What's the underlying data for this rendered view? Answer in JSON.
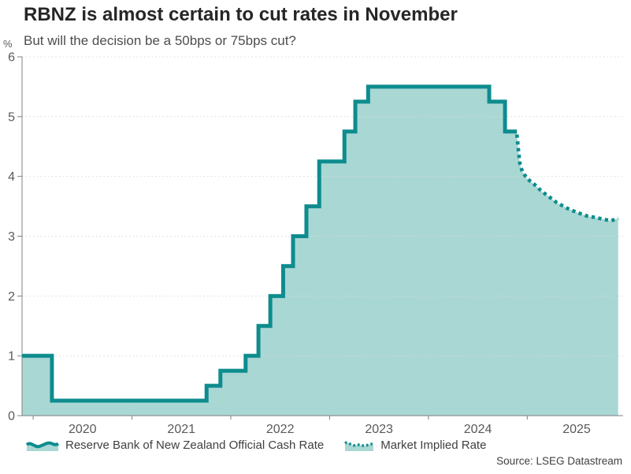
{
  "header": {
    "title": "RBNZ is almost certain to cut rates in November",
    "subtitle": "But will the decision be a 50bps or 75bps cut?",
    "y_unit": "%"
  },
  "legend": {
    "items": [
      {
        "label": "Reserve Bank of New Zealand Official Cash Rate",
        "style": "solid-area"
      },
      {
        "label": "Market Implied Rate",
        "style": "dotted-area"
      }
    ]
  },
  "source": "Source: LSEG Datastream",
  "chart_data": {
    "type": "area",
    "title": "RBNZ is almost certain to cut rates in November",
    "subtitle": "But will the decision be a 50bps or 75bps cut?",
    "xlabel": "",
    "ylabel": "%",
    "ylim": [
      0,
      6
    ],
    "yticks": [
      0,
      1,
      2,
      3,
      4,
      5,
      6
    ],
    "xlim": [
      2019.888,
      2025.97
    ],
    "xticks": [
      2020,
      2021,
      2022,
      2023,
      2024,
      2025
    ],
    "grid": "horizontal-dotted",
    "legend_position": "bottom",
    "series": [
      {
        "name": "Reserve Bank of New Zealand Official Cash Rate",
        "type": "step-area",
        "line": "solid",
        "points": [
          [
            2019.888,
            1.0
          ],
          [
            2020.19,
            0.25
          ],
          [
            2021.755,
            0.5
          ],
          [
            2021.895,
            0.75
          ],
          [
            2022.15,
            1.0
          ],
          [
            2022.28,
            1.5
          ],
          [
            2022.4,
            2.0
          ],
          [
            2022.53,
            2.5
          ],
          [
            2022.63,
            3.0
          ],
          [
            2022.765,
            3.5
          ],
          [
            2022.895,
            4.25
          ],
          [
            2023.15,
            4.75
          ],
          [
            2023.26,
            5.25
          ],
          [
            2023.39,
            5.5
          ],
          [
            2024.615,
            5.25
          ],
          [
            2024.775,
            4.75
          ]
        ],
        "end_x": 2024.895
      },
      {
        "name": "Market Implied Rate",
        "type": "line-area",
        "line": "dotted",
        "points": [
          [
            2024.895,
            4.7
          ],
          [
            2024.91,
            4.45
          ],
          [
            2024.925,
            4.22
          ],
          [
            2024.95,
            4.08
          ],
          [
            2025.0,
            3.96
          ],
          [
            2025.07,
            3.87
          ],
          [
            2025.14,
            3.76
          ],
          [
            2025.22,
            3.66
          ],
          [
            2025.3,
            3.56
          ],
          [
            2025.4,
            3.47
          ],
          [
            2025.5,
            3.4
          ],
          [
            2025.6,
            3.34
          ],
          [
            2025.7,
            3.31
          ],
          [
            2025.78,
            3.28
          ],
          [
            2025.85,
            3.26
          ],
          [
            2025.92,
            3.3
          ]
        ]
      }
    ],
    "theme": {
      "line_color": "#0e8c8e",
      "fill_color": "#a9d7d4",
      "grid_color": "#d9d9d9",
      "axis_color": "#808080",
      "tick_label_color": "#595959",
      "title_color": "#262626",
      "subtitle_color": "#4d4d4d",
      "background": "#ffffff"
    }
  }
}
